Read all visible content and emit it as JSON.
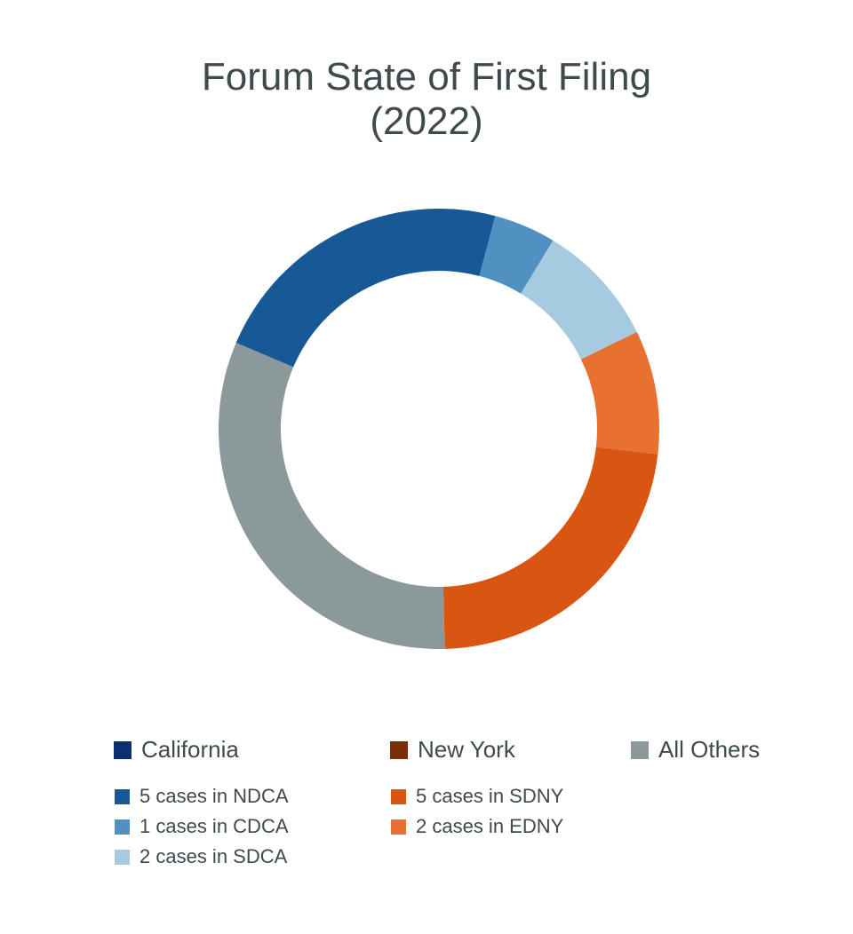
{
  "chart_data": {
    "type": "pie",
    "title_line1": "Forum State of First Filing",
    "title_line2": "(2022)",
    "slices": [
      {
        "label": "5 cases in NDCA",
        "value": 5,
        "color": "#175896",
        "group": "California"
      },
      {
        "label": "1 cases in CDCA",
        "value": 1,
        "color": "#5191c1",
        "group": "California"
      },
      {
        "label": "2 cases in SDCA",
        "value": 2,
        "color": "#a6cae0",
        "group": "California"
      },
      {
        "label": "2 cases  in EDNY",
        "value": 2,
        "color": "#e87131",
        "group": "New York"
      },
      {
        "label": "5 cases in SDNY",
        "value": 5,
        "color": "#d95612",
        "group": "New York"
      },
      {
        "label": "All Others",
        "value": 7,
        "color": "#8c999a",
        "group": "All Others"
      }
    ],
    "legend_groups": [
      {
        "label": "California",
        "color": "#0b2f70"
      },
      {
        "label": "New York",
        "color": "#7a2e08"
      },
      {
        "label": "All Others",
        "color": "#8c999a"
      }
    ]
  }
}
